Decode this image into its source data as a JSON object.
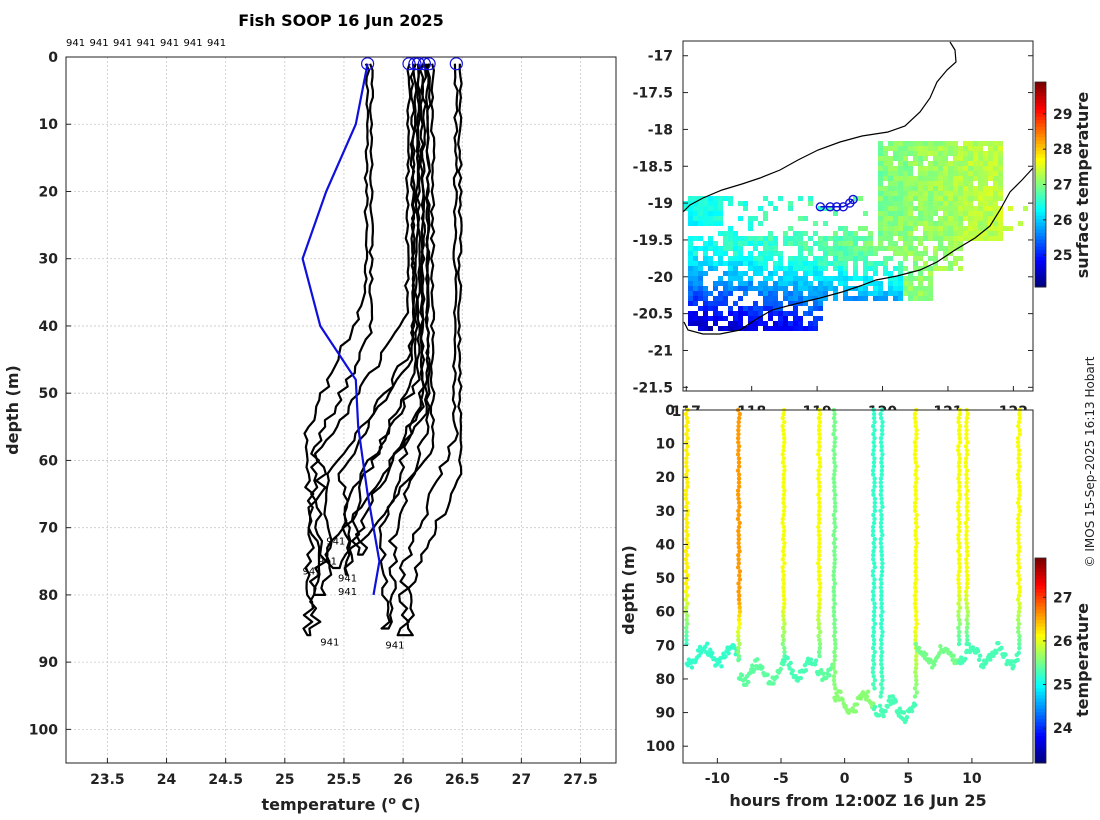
{
  "chart_data": [
    {
      "type": "line",
      "title": "Fish SOOP 16 Jun 2025",
      "xlabel": "temperature (",
      "xlabel_sup": "o",
      "xlabel_end": " C)",
      "ylabel": "depth (m)",
      "xlim": [
        23.15,
        27.8
      ],
      "ylim": [
        105,
        0
      ],
      "xticks": [
        "23.5",
        "24",
        "24.5",
        "25",
        "25.5",
        "26",
        "26.5",
        "27",
        "27.5"
      ],
      "yticks": [
        "0",
        "10",
        "20",
        "30",
        "40",
        "50",
        "60",
        "70",
        "80",
        "90",
        "100"
      ],
      "top_labels": [
        "941",
        "941",
        "941",
        "941",
        "941",
        "941",
        "941"
      ],
      "profile_labels": [
        "941",
        "941",
        "941",
        "941",
        "941",
        "941",
        "941"
      ],
      "highlight_profile": {
        "color": "#1010dd",
        "depth": [
          1,
          10,
          20,
          30,
          40,
          48,
          55,
          65,
          75,
          80
        ],
        "temp": [
          25.7,
          25.6,
          25.35,
          25.15,
          25.3,
          25.6,
          25.62,
          25.7,
          25.8,
          25.75
        ]
      },
      "profiles": [
        {
          "temp_top": 25.7,
          "temp_bottom": 25.2,
          "depth_max": 86
        },
        {
          "temp_top": 26.05,
          "temp_bottom": 25.3,
          "depth_max": 80
        },
        {
          "temp_top": 26.1,
          "temp_bottom": 25.5,
          "depth_max": 77
        },
        {
          "temp_top": 26.13,
          "temp_bottom": 25.6,
          "depth_max": 74
        },
        {
          "temp_top": 26.18,
          "temp_bottom": 25.85,
          "depth_max": 85
        },
        {
          "temp_top": 26.22,
          "temp_bottom": 25.4,
          "depth_max": 76
        },
        {
          "temp_top": 26.45,
          "temp_bottom": 26.0,
          "depth_max": 86
        }
      ]
    },
    {
      "type": "heatmap",
      "title": "",
      "xticks": [
        "117",
        "118",
        "119",
        "120",
        "121",
        "122"
      ],
      "yticks": [
        "-17",
        "-17.5",
        "-18",
        "-18.5",
        "-19",
        "-19.5",
        "-20",
        "-20.5",
        "-21",
        "-21.5"
      ],
      "xlim": [
        116.95,
        122.3
      ],
      "ylim": [
        -21.55,
        -16.8
      ],
      "colorbar_label": "surface temperature",
      "colorbar_ticks": [
        "25",
        "26",
        "27",
        "28",
        "29"
      ],
      "colorbar_range": [
        24.1,
        29.9
      ],
      "track_points": [
        [
          119.05,
          -19.05
        ],
        [
          119.2,
          -19.05
        ],
        [
          119.3,
          -19.05
        ],
        [
          119.4,
          -19.05
        ],
        [
          119.5,
          -19.0
        ],
        [
          119.55,
          -18.95
        ]
      ]
    },
    {
      "type": "scatter",
      "xlabel": "hours from 12:00Z 16 Jun 25",
      "ylabel": "depth (m)",
      "xticks": [
        "-10",
        "-5",
        "0",
        "5",
        "10"
      ],
      "yticks": [
        "0",
        "10",
        "20",
        "30",
        "40",
        "50",
        "60",
        "70",
        "80",
        "90",
        "100"
      ],
      "xlim": [
        -12.7,
        14.8
      ],
      "ylim": [
        105,
        0
      ],
      "colorbar_label": "temperature",
      "colorbar_ticks": [
        "24",
        "25",
        "26",
        "27"
      ],
      "colorbar_range": [
        23.2,
        27.9
      ],
      "casts": [
        {
          "hour": -12.4,
          "temp_top": 26.2,
          "temp_bottom": 25.2,
          "depth_max": 70
        },
        {
          "hour": -8.3,
          "temp_top": 26.6,
          "temp_bottom": 25.4,
          "depth_max": 75
        },
        {
          "hour": -4.8,
          "temp_top": 26.1,
          "temp_bottom": 25.3,
          "depth_max": 76
        },
        {
          "hour": -2.0,
          "temp_top": 26.1,
          "temp_bottom": 25.4,
          "depth_max": 74
        },
        {
          "hour": -0.8,
          "temp_top": 25.5,
          "temp_bottom": 25.6,
          "depth_max": 84
        },
        {
          "hour": 2.3,
          "temp_top": 25.2,
          "temp_bottom": 25.3,
          "depth_max": 84
        },
        {
          "hour": 2.9,
          "temp_top": 25.2,
          "temp_bottom": 25.3,
          "depth_max": 86
        },
        {
          "hour": 5.6,
          "temp_top": 26.1,
          "temp_bottom": 25.5,
          "depth_max": 86
        },
        {
          "hour": 9.0,
          "temp_top": 26.1,
          "temp_bottom": 25.3,
          "depth_max": 70
        },
        {
          "hour": 9.6,
          "temp_top": 26.1,
          "temp_bottom": 25.3,
          "depth_max": 70
        },
        {
          "hour": 13.7,
          "temp_top": 26.1,
          "temp_bottom": 25.3,
          "depth_max": 72
        }
      ]
    }
  ],
  "credit": "© IMOS 15-Sep-2025 16:13 Hobart"
}
